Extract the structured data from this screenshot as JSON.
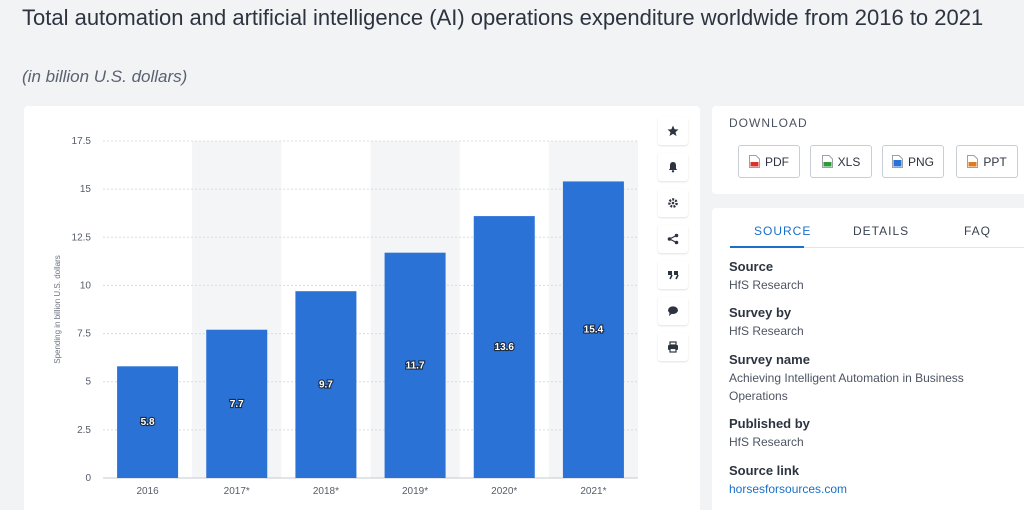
{
  "header": {
    "title": "Total automation and artificial intelligence (AI) operations expenditure worldwide from 2016 to 2021",
    "subtitle": "(in billion U.S. dollars)"
  },
  "chart_data": {
    "type": "bar",
    "categories": [
      "2016",
      "2017*",
      "2018*",
      "2019*",
      "2020*",
      "2021*"
    ],
    "values": [
      5.8,
      7.7,
      9.7,
      11.7,
      13.6,
      15.4
    ],
    "data_labels": [
      "5.8",
      "7.7",
      "9.7",
      "11.7",
      "13.6",
      "15.4"
    ],
    "title": "",
    "xlabel": "",
    "ylabel": "Spending in billion U.S. dollars",
    "ylim": [
      0,
      17.5
    ],
    "yticks": [
      "0",
      "2.5",
      "5",
      "7.5",
      "10",
      "12.5",
      "15",
      "17.5"
    ],
    "grid": true,
    "bar_color": "#2a72d6",
    "alt_band_color": "#f4f5f7",
    "legend": "none"
  },
  "toolbar": {
    "icons": [
      "star-icon",
      "bell-icon",
      "gear-icon",
      "share-icon",
      "quote-icon",
      "comment-icon",
      "print-icon"
    ]
  },
  "download": {
    "label": "DOWNLOAD",
    "buttons": [
      {
        "label": "PDF",
        "icon_color": "#d9342b"
      },
      {
        "label": "XLS",
        "icon_color": "#2e9b3a"
      },
      {
        "label": "PNG",
        "icon_color": "#2a72d6"
      },
      {
        "label": "PPT",
        "icon_color": "#e07a1f"
      }
    ]
  },
  "info": {
    "tabs": [
      "SOURCE",
      "DETAILS",
      "FAQ"
    ],
    "active_tab": "SOURCE",
    "source_label": "Source",
    "source_value": "HfS Research",
    "survey_by_label": "Survey by",
    "survey_by_value": "HfS Research",
    "survey_name_label": "Survey name",
    "survey_name_value": "Achieving Intelligent Automation in Business Operations",
    "published_by_label": "Published by",
    "published_by_value": "HfS Research",
    "source_link_label": "Source link",
    "source_link_value": "horsesforsources.com"
  }
}
